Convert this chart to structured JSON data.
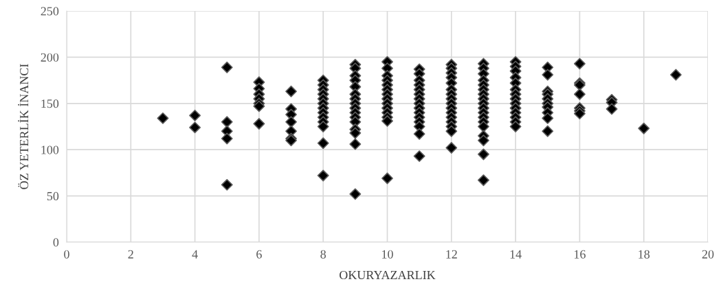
{
  "chart_data": {
    "type": "scatter",
    "xlabel": "OKURYAZARLIK",
    "ylabel": "ÖZ YETERLİK İNANCI",
    "x": [
      3,
      4,
      4,
      5,
      5,
      5,
      5,
      5,
      6,
      6,
      6,
      6,
      6,
      6,
      6,
      7,
      7,
      7,
      7,
      7,
      7,
      7,
      8,
      8,
      8,
      8,
      8,
      8,
      8,
      8,
      8,
      8,
      8,
      8,
      8,
      9,
      9,
      9,
      9,
      9,
      9,
      9,
      9,
      9,
      9,
      9,
      9,
      9,
      9,
      9,
      9,
      10,
      10,
      10,
      10,
      10,
      10,
      10,
      10,
      10,
      10,
      10,
      10,
      10,
      10,
      11,
      11,
      11,
      11,
      11,
      11,
      11,
      11,
      11,
      11,
      11,
      11,
      11,
      11,
      11,
      12,
      12,
      12,
      12,
      12,
      12,
      12,
      12,
      12,
      12,
      12,
      12,
      12,
      12,
      12,
      12,
      13,
      13,
      13,
      13,
      13,
      13,
      13,
      13,
      13,
      13,
      13,
      13,
      13,
      13,
      13,
      13,
      13,
      13,
      14,
      14,
      14,
      14,
      14,
      14,
      14,
      14,
      14,
      14,
      14,
      14,
      14,
      14,
      15,
      15,
      15,
      15,
      15,
      15,
      15,
      15,
      15,
      15,
      16,
      16,
      16,
      16,
      16,
      16,
      16,
      17,
      17,
      17,
      18,
      19
    ],
    "values": [
      134,
      137,
      124,
      189,
      130,
      120,
      112,
      62,
      173,
      166,
      160,
      155,
      150,
      147,
      128,
      163,
      144,
      138,
      130,
      120,
      112,
      110,
      175,
      170,
      165,
      160,
      155,
      150,
      145,
      140,
      135,
      130,
      125,
      107,
      72,
      192,
      188,
      180,
      175,
      168,
      160,
      155,
      150,
      145,
      140,
      135,
      130,
      122,
      118,
      106,
      52,
      195,
      188,
      180,
      175,
      170,
      165,
      160,
      155,
      150,
      145,
      140,
      135,
      131,
      69,
      187,
      182,
      175,
      170,
      165,
      160,
      155,
      150,
      145,
      140,
      135,
      130,
      125,
      117,
      93,
      192,
      188,
      183,
      178,
      172,
      165,
      160,
      155,
      150,
      145,
      140,
      135,
      130,
      125,
      120,
      102,
      193,
      188,
      182,
      175,
      170,
      165,
      160,
      155,
      150,
      145,
      140,
      135,
      130,
      125,
      115,
      110,
      95,
      67,
      195,
      190,
      185,
      178,
      172,
      165,
      160,
      155,
      150,
      145,
      140,
      135,
      130,
      125,
      189,
      181,
      163,
      160,
      155,
      150,
      146,
      140,
      134,
      120,
      193,
      172,
      170,
      160,
      145,
      142,
      139,
      154,
      151,
      144,
      123,
      181
    ],
    "color": "#000000",
    "marker": "diamond",
    "grid": true,
    "xlim": [
      0,
      20
    ],
    "xticks": [
      0,
      2,
      4,
      6,
      8,
      10,
      12,
      14,
      16,
      18,
      20
    ],
    "ylim": [
      0,
      250
    ],
    "yticks": [
      0,
      50,
      100,
      150,
      200,
      250
    ]
  }
}
